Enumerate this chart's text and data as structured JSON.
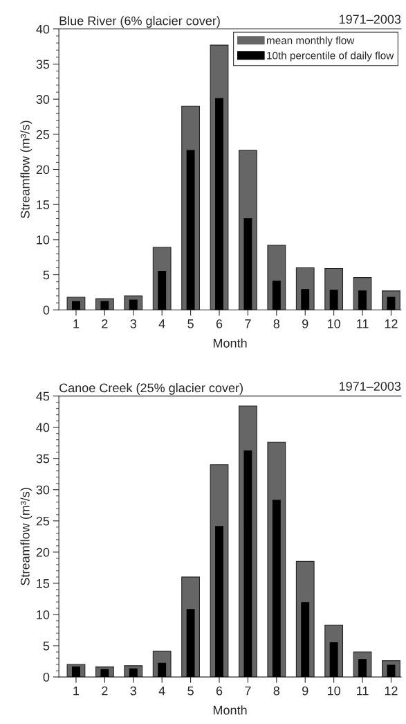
{
  "chart_data": [
    {
      "type": "bar",
      "title": "Blue River (6% glacier cover)",
      "subtitle": "1971–2003",
      "xlabel": "Month",
      "ylabel": "Streamflow (m³/s)",
      "categories": [
        "1",
        "2",
        "3",
        "4",
        "5",
        "6",
        "7",
        "8",
        "9",
        "10",
        "11",
        "12"
      ],
      "series": [
        {
          "name": "mean monthly flow",
          "color": "#666666",
          "values": [
            1.8,
            1.6,
            2.0,
            8.9,
            29.0,
            37.7,
            22.7,
            9.2,
            6.0,
            5.9,
            4.6,
            2.7
          ]
        },
        {
          "name": "10th percentile of daily flow",
          "color": "#000000",
          "values": [
            1.2,
            1.2,
            1.4,
            5.5,
            22.7,
            30.1,
            13.0,
            4.1,
            2.9,
            2.8,
            2.7,
            1.8
          ]
        }
      ],
      "ylim": [
        0,
        40
      ],
      "yticks": [
        0,
        5,
        10,
        15,
        20,
        25,
        30,
        35,
        40
      ],
      "grid": false,
      "legend": "top right"
    },
    {
      "type": "bar",
      "title": "Canoe Creek (25% glacier cover)",
      "subtitle": "1971–2003",
      "xlabel": "Month",
      "ylabel": "Streamflow (m³/s)",
      "categories": [
        "1",
        "2",
        "3",
        "4",
        "5",
        "6",
        "7",
        "8",
        "9",
        "10",
        "11",
        "12"
      ],
      "series": [
        {
          "color": "#666666",
          "values": [
            2.0,
            1.6,
            1.8,
            4.1,
            16.0,
            34.0,
            43.4,
            37.6,
            18.5,
            8.3,
            4.0,
            2.6
          ]
        },
        {
          "color": "#000000",
          "values": [
            1.6,
            1.2,
            1.3,
            2.2,
            10.8,
            24.1,
            36.2,
            28.3,
            11.9,
            5.5,
            2.8,
            1.9
          ]
        }
      ],
      "ylim": [
        0,
        45
      ],
      "yticks": [
        0,
        5,
        10,
        15,
        20,
        25,
        30,
        35,
        40,
        45
      ],
      "grid": false
    }
  ]
}
